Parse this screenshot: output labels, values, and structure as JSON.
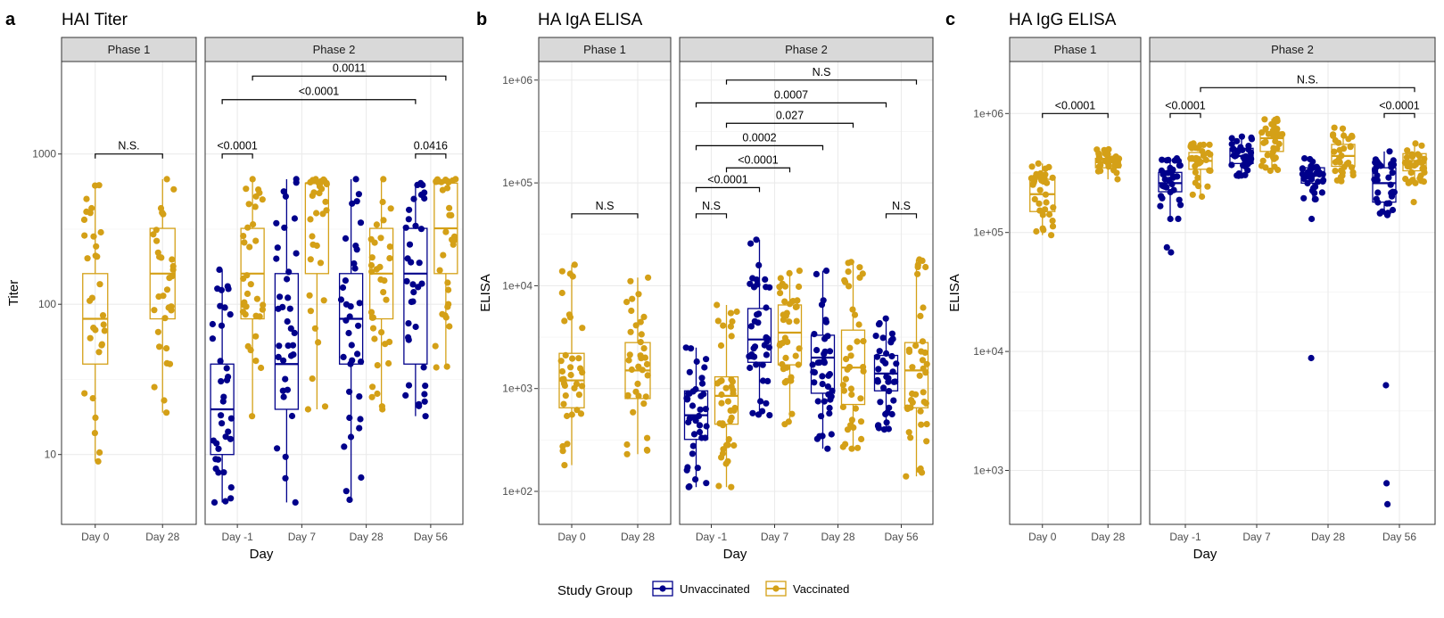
{
  "colors": {
    "unvaccinated": "#00008B",
    "vaccinated": "#D4A017",
    "grid": "#ebebeb",
    "strip_bg": "#d9d9d9"
  },
  "legend": {
    "title": "Study Group",
    "items": [
      {
        "key": "unvaccinated",
        "label": "Unvaccinated"
      },
      {
        "key": "vaccinated",
        "label": "Vaccinated"
      }
    ]
  },
  "chart_data": [
    {
      "label": "a",
      "title": "HAI Titer",
      "type": "box",
      "ylabel": "Titer",
      "xlabel": "Day",
      "y_scale": "log10",
      "ylim": [
        4,
        4000
      ],
      "y_ticks": [
        10,
        100,
        1000
      ],
      "y_tick_labels": [
        "10",
        "100",
        "1000"
      ],
      "y_minor": [
        31.6,
        316
      ],
      "facets": [
        {
          "strip": "Phase 1",
          "categories": [
            "Day 0",
            "Day 28"
          ],
          "boxes": [
            {
              "category": "Day 0",
              "group": "vaccinated",
              "q1": 40,
              "median": 80,
              "q3": 160,
              "whisker_low": 9,
              "whisker_high": 620,
              "n": 32
            },
            {
              "category": "Day 28",
              "group": "vaccinated",
              "q1": 80,
              "median": 160,
              "q3": 320,
              "whisker_low": 19,
              "whisker_high": 680,
              "n": 32
            }
          ],
          "brackets": [
            {
              "from": "Day 0",
              "to": "Day 28",
              "y": 1000,
              "label": "N.S."
            }
          ]
        },
        {
          "strip": "Phase 2",
          "categories": [
            "Day -1",
            "Day 7",
            "Day 28",
            "Day 56"
          ],
          "boxes": [
            {
              "category": "Day -1",
              "group": "unvaccinated",
              "q1": 10,
              "median": 20,
              "q3": 40,
              "whisker_low": 4.8,
              "whisker_high": 170,
              "n": 36
            },
            {
              "category": "Day -1",
              "group": "vaccinated",
              "q1": 80,
              "median": 160,
              "q3": 320,
              "whisker_low": 18,
              "whisker_high": 680,
              "n": 34
            },
            {
              "category": "Day 7",
              "group": "unvaccinated",
              "q1": 20,
              "median": 40,
              "q3": 160,
              "whisker_low": 4.8,
              "whisker_high": 680,
              "n": 36
            },
            {
              "category": "Day 7",
              "group": "vaccinated",
              "q1": 160,
              "median": 640,
              "q3": 640,
              "whisker_low": 20,
              "whisker_high": 680,
              "n": 34
            },
            {
              "category": "Day 28",
              "group": "unvaccinated",
              "q1": 40,
              "median": 80,
              "q3": 160,
              "whisker_low": 5,
              "whisker_high": 680,
              "n": 36
            },
            {
              "category": "Day 28",
              "group": "vaccinated",
              "q1": 80,
              "median": 160,
              "q3": 320,
              "whisker_low": 20,
              "whisker_high": 680,
              "n": 34
            },
            {
              "category": "Day 56",
              "group": "unvaccinated",
              "q1": 40,
              "median": 160,
              "q3": 320,
              "whisker_low": 18,
              "whisker_high": 640,
              "n": 36
            },
            {
              "category": "Day 56",
              "group": "vaccinated",
              "q1": 160,
              "median": 320,
              "q3": 640,
              "whisker_low": 38,
              "whisker_high": 680,
              "n": 34
            }
          ],
          "brackets": [
            {
              "from": "Day -1",
              "to": "Day -1",
              "y": 1000,
              "label": "<0.0001"
            },
            {
              "from": "Day -1",
              "to": "Day 56",
              "y": 2300,
              "label": "<0.0001"
            },
            {
              "from": "Day -1",
              "to": "Day 56",
              "y": 3300,
              "label": "0.0011",
              "to_group": "vaccinated",
              "from_group": "vaccinated"
            },
            {
              "from": "Day 56",
              "to": "Day 56",
              "y": 1000,
              "label": "0.0416"
            }
          ]
        }
      ]
    },
    {
      "label": "b",
      "title": "HA IgA ELISA",
      "type": "box",
      "ylabel": "ELISA",
      "xlabel": "Day",
      "y_scale": "log10",
      "ylim": [
        50,
        2000000
      ],
      "y_ticks": [
        100,
        1000,
        10000,
        100000,
        1000000
      ],
      "y_tick_labels": [
        "1e+02",
        "1e+03",
        "1e+04",
        "1e+05",
        "1e+06"
      ],
      "y_minor": [
        316,
        3162,
        31623,
        316228
      ],
      "facets": [
        {
          "strip": "Phase 1",
          "categories": [
            "Day 0",
            "Day 28"
          ],
          "boxes": [
            {
              "category": "Day 0",
              "group": "vaccinated",
              "q1": 650,
              "median": 1200,
              "q3": 2200,
              "whisker_low": 180,
              "whisker_high": 16000,
              "n": 36
            },
            {
              "category": "Day 28",
              "group": "vaccinated",
              "q1": 800,
              "median": 1500,
              "q3": 2800,
              "whisker_low": 230,
              "whisker_high": 12000,
              "n": 36
            }
          ],
          "brackets": [
            {
              "from": "Day 0",
              "to": "Day 28",
              "y": 50000,
              "label": "N.S"
            }
          ]
        },
        {
          "strip": "Phase 2",
          "categories": [
            "Day -1",
            "Day 7",
            "Day 28",
            "Day 56"
          ],
          "boxes": [
            {
              "category": "Day -1",
              "group": "unvaccinated",
              "q1": 320,
              "median": 550,
              "q3": 950,
              "whisker_low": 110,
              "whisker_high": 2500,
              "n": 40
            },
            {
              "category": "Day -1",
              "group": "vaccinated",
              "q1": 450,
              "median": 850,
              "q3": 1300,
              "whisker_low": 110,
              "whisker_high": 6500,
              "n": 40
            },
            {
              "category": "Day 7",
              "group": "unvaccinated",
              "q1": 1800,
              "median": 3000,
              "q3": 6000,
              "whisker_low": 550,
              "whisker_high": 28000,
              "n": 40
            },
            {
              "category": "Day 7",
              "group": "vaccinated",
              "q1": 1700,
              "median": 3500,
              "q3": 6500,
              "whisker_low": 450,
              "whisker_high": 14000,
              "n": 40
            },
            {
              "category": "Day 28",
              "group": "unvaccinated",
              "q1": 900,
              "median": 2000,
              "q3": 3300,
              "whisker_low": 260,
              "whisker_high": 14000,
              "n": 40
            },
            {
              "category": "Day 28",
              "group": "vaccinated",
              "q1": 700,
              "median": 1600,
              "q3": 3700,
              "whisker_low": 260,
              "whisker_high": 17000,
              "n": 40
            },
            {
              "category": "Day 56",
              "group": "unvaccinated",
              "q1": 950,
              "median": 1400,
              "q3": 2100,
              "whisker_low": 400,
              "whisker_high": 4800,
              "n": 40
            },
            {
              "category": "Day 56",
              "group": "vaccinated",
              "q1": 650,
              "median": 1500,
              "q3": 2800,
              "whisker_low": 140,
              "whisker_high": 18000,
              "n": 40
            }
          ],
          "brackets": [
            {
              "from": "Day -1",
              "to": "Day -1",
              "y": 50000,
              "label": "N.S"
            },
            {
              "from": "Day -1",
              "to": "Day 7",
              "y": 90000,
              "label": "<0.0001"
            },
            {
              "from": "Day -1",
              "to": "Day 7",
              "y": 140000,
              "label": "<0.0001",
              "from_group": "vaccinated",
              "to_group": "vaccinated"
            },
            {
              "from": "Day -1",
              "to": "Day 28",
              "y": 230000,
              "label": "0.0002"
            },
            {
              "from": "Day -1",
              "to": "Day 28",
              "y": 380000,
              "label": "0.027",
              "from_group": "vaccinated",
              "to_group": "vaccinated"
            },
            {
              "from": "Day -1",
              "to": "Day 56",
              "y": 600000,
              "label": "0.0007"
            },
            {
              "from": "Day -1",
              "to": "Day 56",
              "y": 1000000,
              "label": "N.S",
              "from_group": "vaccinated",
              "to_group": "vaccinated"
            },
            {
              "from": "Day 56",
              "to": "Day 56",
              "y": 50000,
              "label": "N.S"
            }
          ]
        }
      ]
    },
    {
      "label": "c",
      "title": "HA IgG ELISA",
      "type": "box",
      "ylabel": "ELISA",
      "xlabel": "Day",
      "y_scale": "log10",
      "ylim": [
        340,
        4000000
      ],
      "y_ticks": [
        1000,
        10000,
        100000,
        1000000
      ],
      "y_tick_labels": [
        "1e+03",
        "1e+04",
        "1e+05",
        "1e+06"
      ],
      "y_minor": [
        3162,
        31623,
        316228
      ],
      "facets": [
        {
          "strip": "Phase 1",
          "categories": [
            "Day 0",
            "Day 28"
          ],
          "boxes": [
            {
              "category": "Day 0",
              "group": "vaccinated",
              "q1": 150000,
              "median": 210000,
              "q3": 280000,
              "whisker_low": 95000,
              "whisker_high": 380000,
              "n": 34
            },
            {
              "category": "Day 28",
              "group": "vaccinated",
              "q1": 350000,
              "median": 390000,
              "q3": 420000,
              "whisker_low": 280000,
              "whisker_high": 500000,
              "n": 34
            }
          ],
          "brackets": [
            {
              "from": "Day 0",
              "to": "Day 28",
              "y": 1000000,
              "label": "<0.0001"
            }
          ]
        },
        {
          "strip": "Phase 2",
          "categories": [
            "Day -1",
            "Day 7",
            "Day 28",
            "Day 56"
          ],
          "boxes": [
            {
              "category": "Day -1",
              "group": "unvaccinated",
              "q1": 220000,
              "median": 260000,
              "q3": 320000,
              "whisker_low": 130000,
              "whisker_high": 420000,
              "n": 34
            },
            {
              "category": "Day -1",
              "group": "vaccinated",
              "q1": 340000,
              "median": 400000,
              "q3": 470000,
              "whisker_low": 200000,
              "whisker_high": 560000,
              "n": 34
            },
            {
              "category": "Day 7",
              "group": "unvaccinated",
              "q1": 380000,
              "median": 440000,
              "q3": 510000,
              "whisker_low": 300000,
              "whisker_high": 640000,
              "n": 34
            },
            {
              "category": "Day 7",
              "group": "vaccinated",
              "q1": 480000,
              "median": 620000,
              "q3": 700000,
              "whisker_low": 330000,
              "whisker_high": 900000,
              "n": 34
            },
            {
              "category": "Day 28",
              "group": "unvaccinated",
              "q1": 260000,
              "median": 300000,
              "q3": 350000,
              "whisker_low": 190000,
              "whisker_high": 420000,
              "n": 34
            },
            {
              "category": "Day 28",
              "group": "vaccinated",
              "q1": 360000,
              "median": 440000,
              "q3": 550000,
              "whisker_low": 270000,
              "whisker_high": 760000,
              "n": 34
            },
            {
              "category": "Day 56",
              "group": "unvaccinated",
              "q1": 180000,
              "median": 260000,
              "q3": 350000,
              "whisker_low": 140000,
              "whisker_high": 480000,
              "n": 34
            },
            {
              "category": "Day 56",
              "group": "vaccinated",
              "q1": 330000,
              "median": 400000,
              "q3": 460000,
              "whisker_low": 260000,
              "whisker_high": 560000,
              "n": 34
            }
          ],
          "outliers": [
            {
              "category": "Day -1",
              "group": "unvaccinated",
              "values": [
                75000,
                68000
              ]
            },
            {
              "category": "Day 28",
              "group": "unvaccinated",
              "values": [
                130000,
                8800
              ]
            },
            {
              "category": "Day 56",
              "group": "unvaccinated",
              "values": [
                5200,
                780,
                520
              ]
            },
            {
              "category": "Day 56",
              "group": "vaccinated",
              "values": [
                180000
              ]
            }
          ],
          "brackets": [
            {
              "from": "Day -1",
              "to": "Day -1",
              "y": 1000000,
              "label": "<0.0001"
            },
            {
              "from": "Day -1",
              "to": "Day 56",
              "y": 1650000,
              "label": "N.S.",
              "from_group": "vaccinated",
              "to_group": "vaccinated"
            },
            {
              "from": "Day 56",
              "to": "Day 56",
              "y": 1000000,
              "label": "<0.0001"
            }
          ]
        }
      ]
    }
  ]
}
